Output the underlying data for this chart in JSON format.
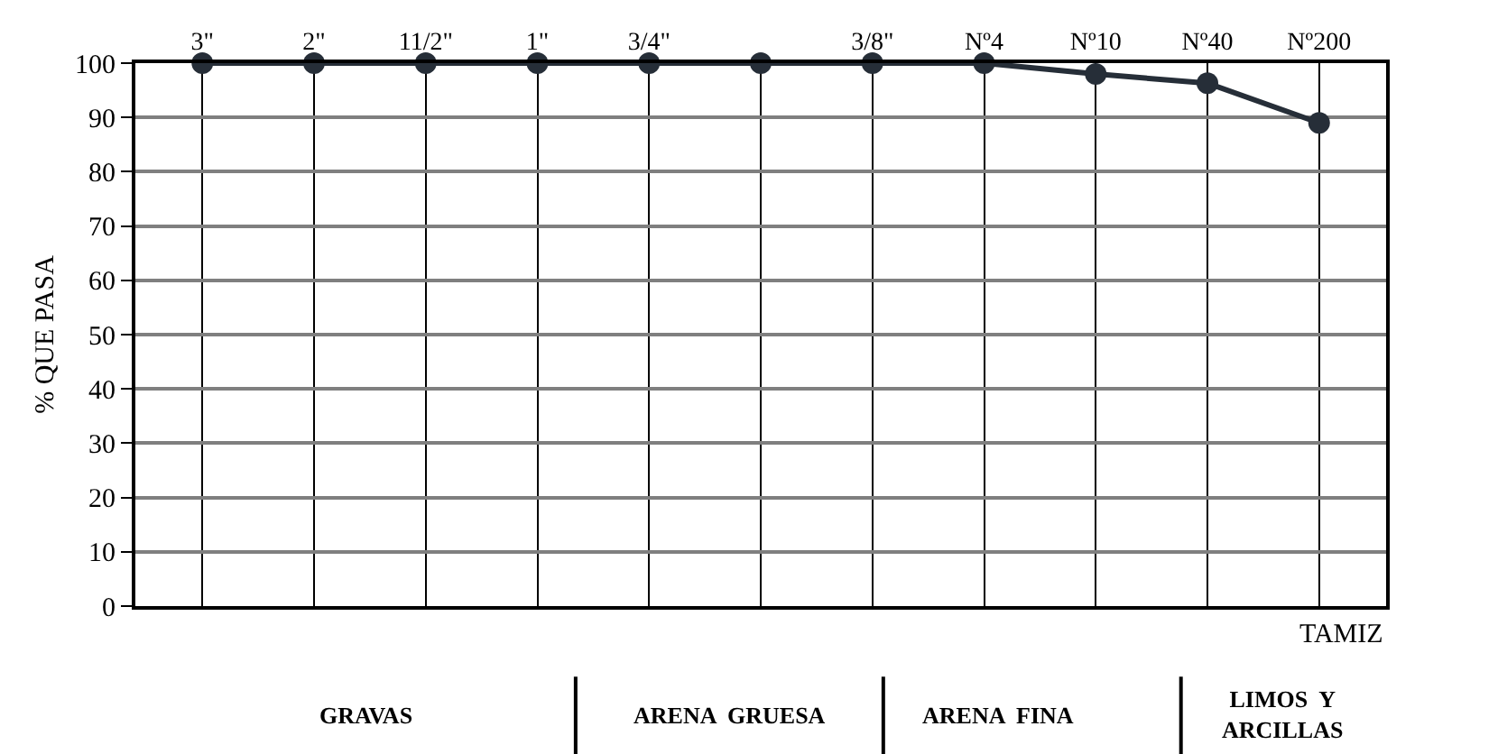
{
  "chart_data": {
    "type": "line",
    "xlabel": "TAMIZ",
    "ylabel": "% QUE PASA",
    "categories": [
      "3\"",
      "2\"",
      "11/2\"",
      "1\"",
      "3/4\"",
      null,
      "3/8\"",
      "Nº4",
      "Nº10",
      "Nº40",
      "Nº200"
    ],
    "series": [
      {
        "color": "#262e38",
        "values": [
          100,
          100,
          100,
          100,
          100,
          100,
          100,
          100,
          98,
          96.3,
          89
        ]
      }
    ],
    "marker": "circle",
    "line_style": "solid",
    "grid": true,
    "ylim": [
      0,
      100
    ],
    "yticks": [
      0,
      10,
      20,
      30,
      40,
      50,
      60,
      70,
      80,
      90,
      100
    ],
    "annotations": [
      "GRAVAS",
      "ARENA  GRUESA",
      "ARENA  FINA",
      "LIMOS  Y\nARCILLAS"
    ]
  }
}
